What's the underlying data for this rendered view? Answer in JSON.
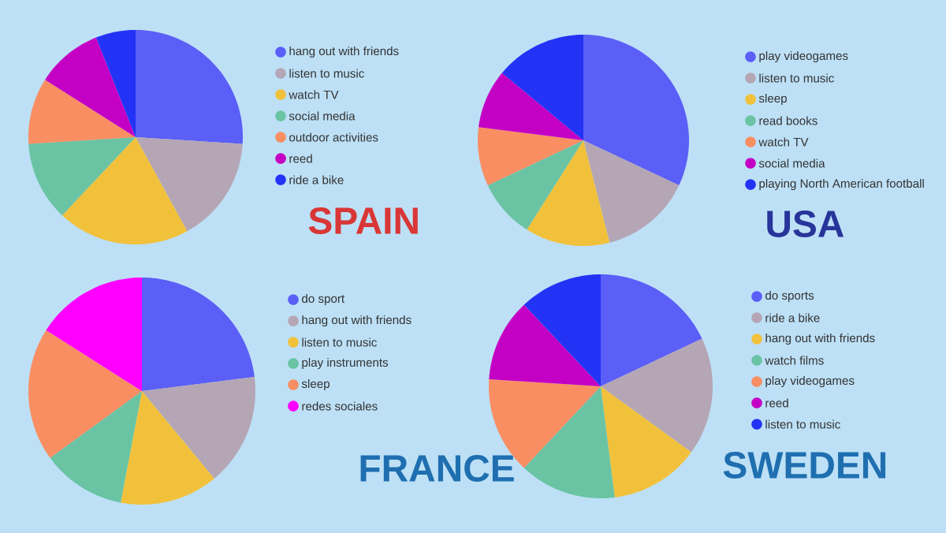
{
  "chart_data": [
    {
      "type": "pie",
      "title": "SPAIN",
      "legend": "right",
      "categories": [
        "hang out with friends",
        "listen to music",
        "watch TV",
        "social media",
        "outdoor activities",
        "reed",
        "ride a bike"
      ],
      "values": [
        26,
        16,
        20,
        12,
        10,
        10,
        6
      ],
      "colors": [
        "#5b5ef7",
        "#b5a6b5",
        "#f2c13c",
        "#6ac4a4",
        "#f98e63",
        "#c400c4",
        "#2333f5"
      ]
    },
    {
      "type": "pie",
      "title": "USA",
      "legend": "right",
      "categories": [
        "play videogames",
        "listen to music",
        "sleep",
        "read books",
        "watch TV",
        "social media",
        "playing North American football"
      ],
      "values": [
        32,
        14,
        13,
        9,
        9,
        9,
        14
      ],
      "colors": [
        "#5b5ef7",
        "#b5a6b5",
        "#f2c13c",
        "#6ac4a4",
        "#f98e63",
        "#c400c4",
        "#2333f5"
      ]
    },
    {
      "type": "pie",
      "title": "FRANCE",
      "legend": "right",
      "categories": [
        "do sport",
        "hang out with friends",
        "listen to music",
        "play instruments",
        "sleep",
        "redes sociales"
      ],
      "values": [
        23,
        16,
        14,
        12,
        19,
        16
      ],
      "colors": [
        "#5b5ef7",
        "#b5a6b5",
        "#f2c13c",
        "#6ac4a4",
        "#f98e63",
        "#ff00ff"
      ]
    },
    {
      "type": "pie",
      "title": "SWEDEN",
      "legend": "right",
      "categories": [
        "do sports",
        "ride a bike",
        "hang out with friends",
        "watch films",
        "play videogames",
        "reed",
        "listen to music"
      ],
      "values": [
        18,
        17,
        13,
        14,
        14,
        12,
        12
      ],
      "colors": [
        "#5b5ef7",
        "#b5a6b5",
        "#f2c13c",
        "#6ac4a4",
        "#f98e63",
        "#c400c4",
        "#2333f5"
      ]
    }
  ]
}
